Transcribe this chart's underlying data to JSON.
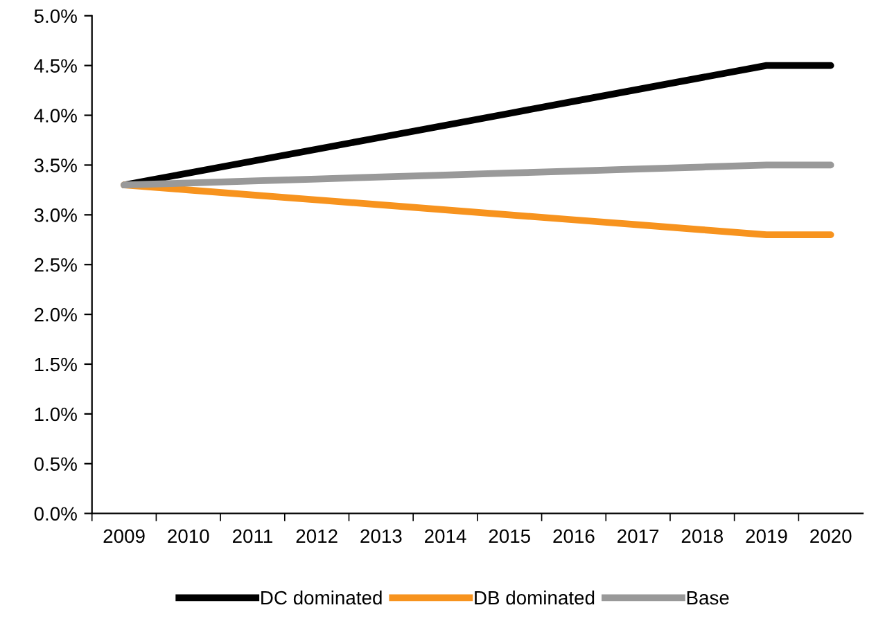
{
  "chart_data": {
    "type": "line",
    "categories": [
      "2009",
      "2010",
      "2011",
      "2012",
      "2013",
      "2014",
      "2015",
      "2016",
      "2017",
      "2018",
      "2019",
      "2020"
    ],
    "series": [
      {
        "name": "DC dominated",
        "color": "#000000",
        "values": [
          3.3,
          3.42,
          3.54,
          3.66,
          3.78,
          3.9,
          4.02,
          4.14,
          4.26,
          4.38,
          4.5,
          4.5
        ]
      },
      {
        "name": "DB dominated",
        "color": "#f7931e",
        "values": [
          3.3,
          3.25,
          3.2,
          3.15,
          3.1,
          3.05,
          3.0,
          2.95,
          2.9,
          2.85,
          2.8,
          2.8
        ]
      },
      {
        "name": "Base",
        "color": "#999999",
        "values": [
          3.3,
          3.32,
          3.34,
          3.36,
          3.38,
          3.4,
          3.42,
          3.44,
          3.46,
          3.48,
          3.5,
          3.5
        ]
      }
    ],
    "ylim": [
      0,
      5
    ],
    "yticks": [
      {
        "value": 0,
        "label": "0.0%"
      },
      {
        "value": 0.5,
        "label": "0.5%"
      },
      {
        "value": 1,
        "label": "1.0%"
      },
      {
        "value": 1.5,
        "label": "1.5%"
      },
      {
        "value": 2,
        "label": "2.0%"
      },
      {
        "value": 2.5,
        "label": "2.5%"
      },
      {
        "value": 3,
        "label": "3.0%"
      },
      {
        "value": 3.5,
        "label": "3.5%"
      },
      {
        "value": 4,
        "label": "4.0%"
      },
      {
        "value": 4.5,
        "label": "4.5%"
      },
      {
        "value": 5,
        "label": "5.0%"
      }
    ],
    "grid": false,
    "legend": "bottom",
    "marker": "none",
    "line_style": "solid"
  }
}
